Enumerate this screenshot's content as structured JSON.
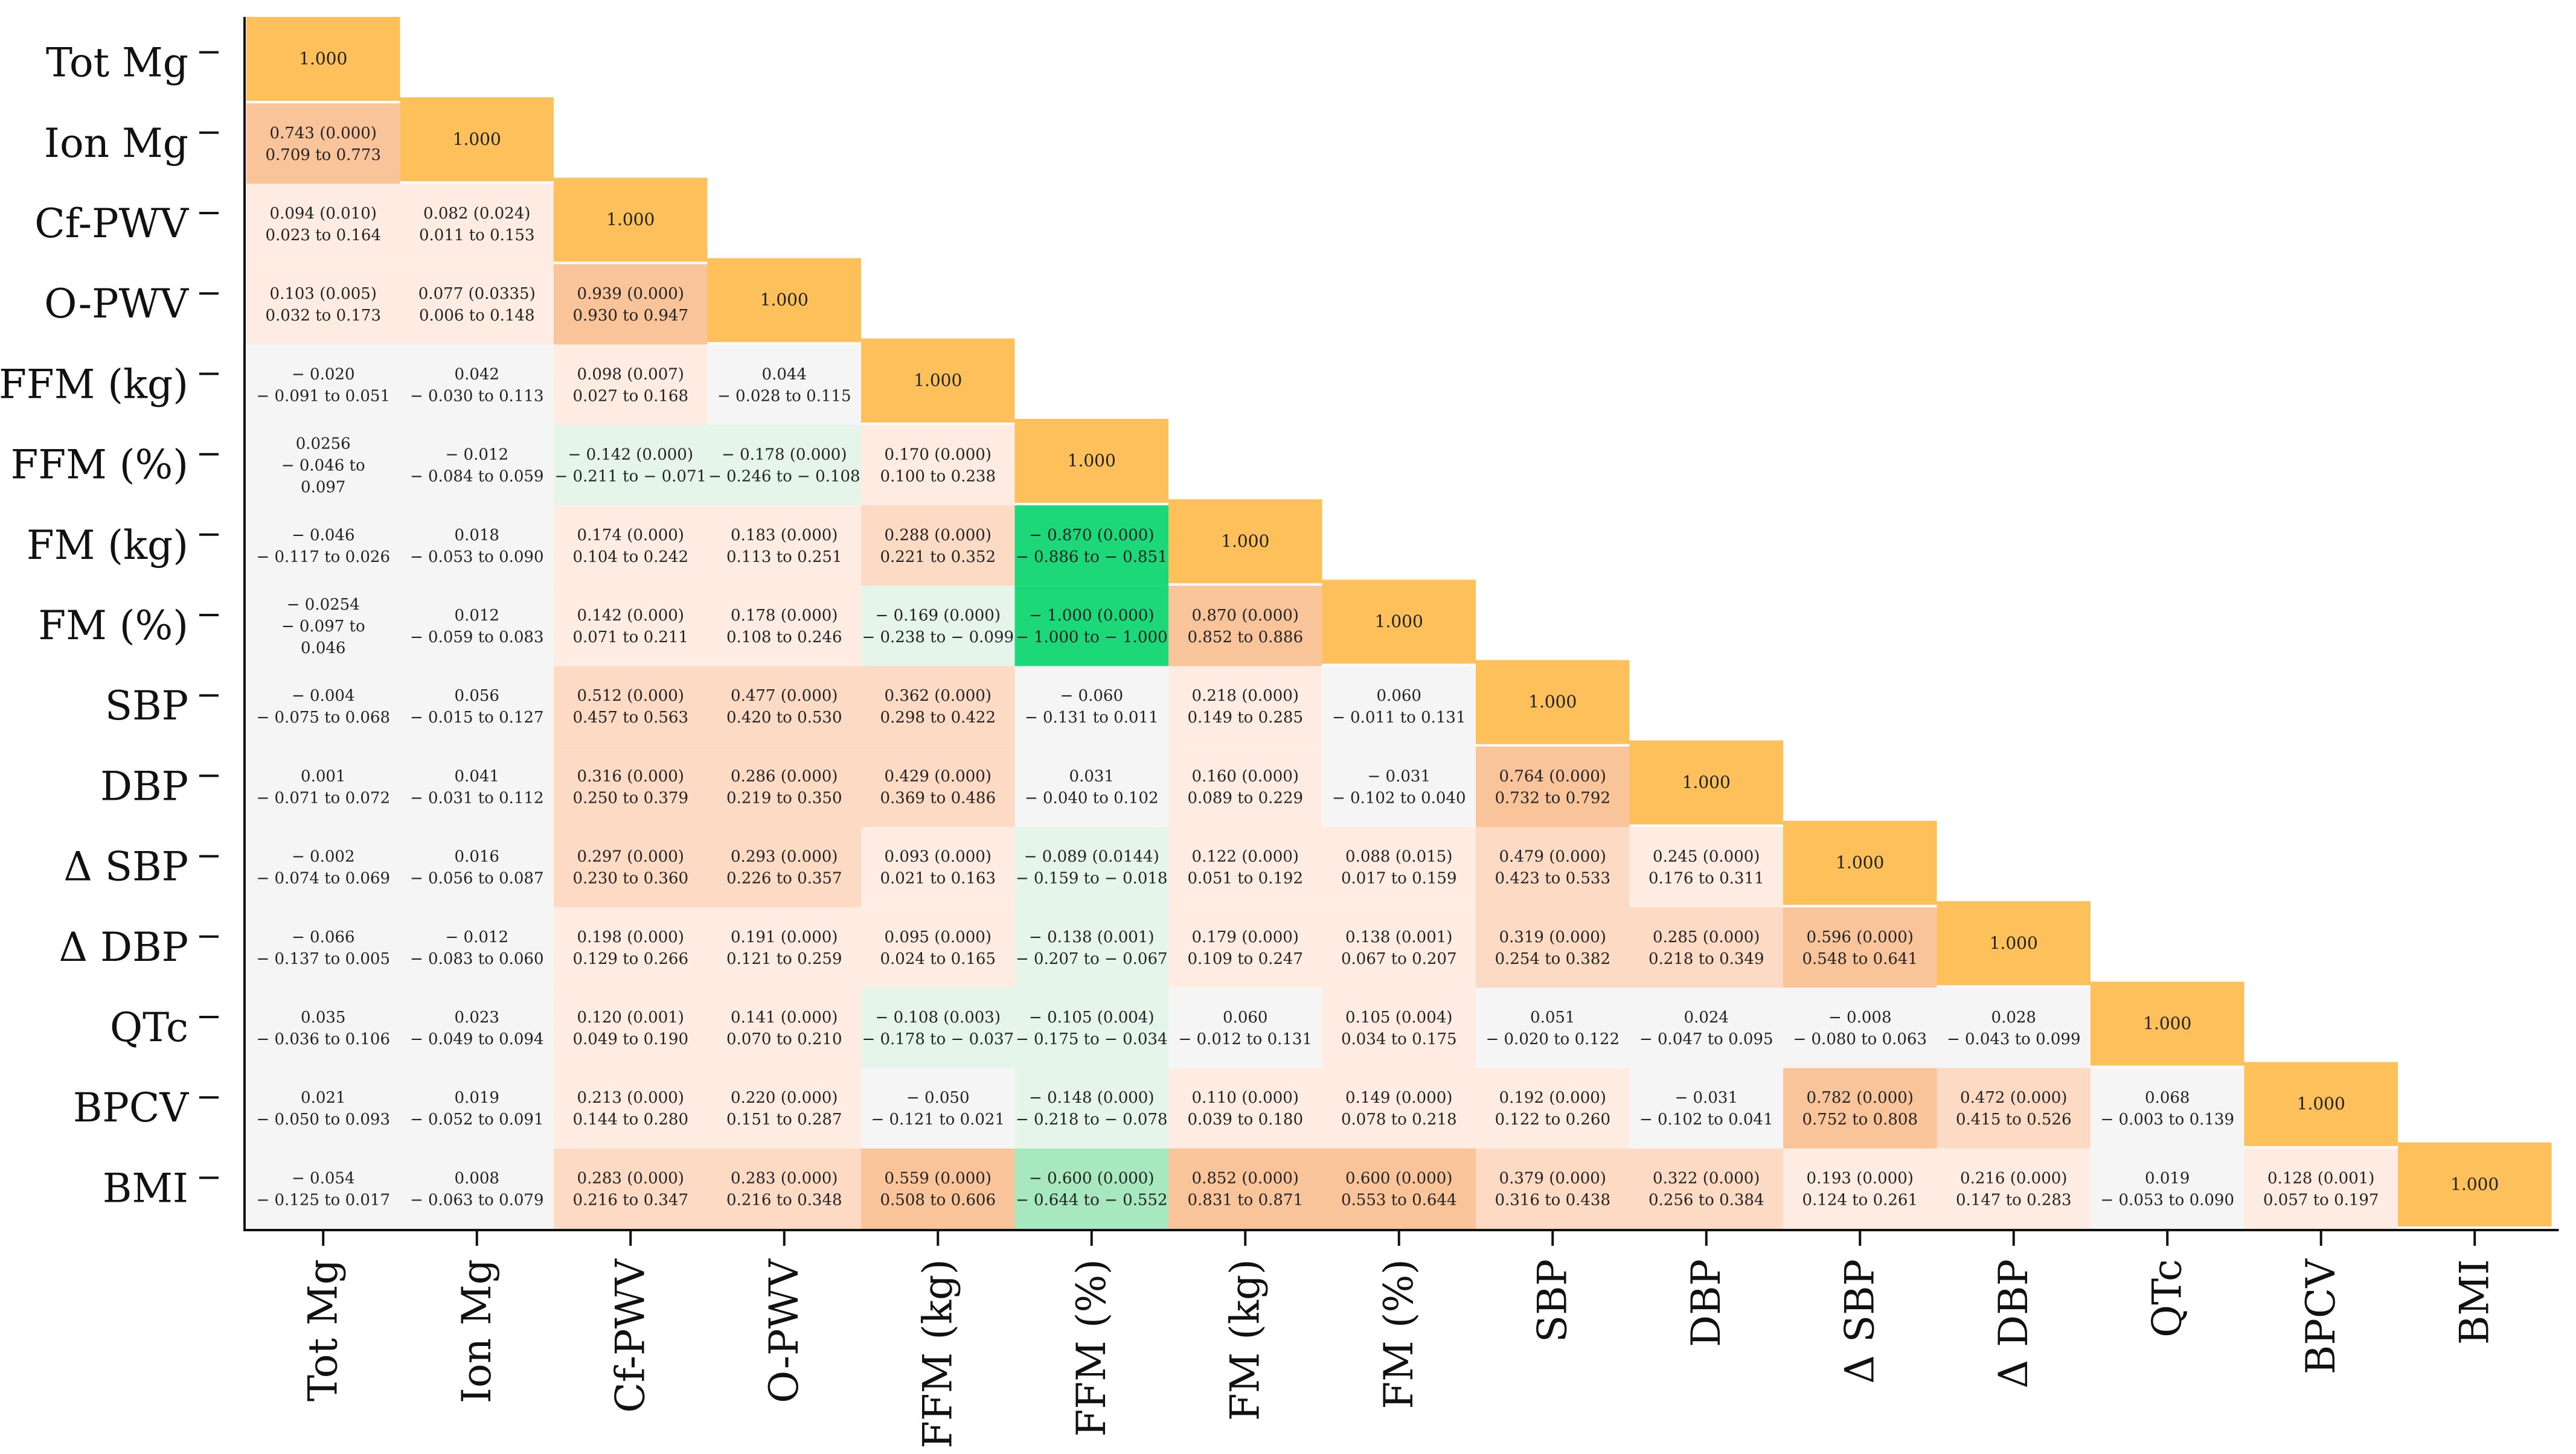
{
  "chart_data": {
    "type": "heatmap",
    "title": "",
    "variables": [
      "Tot Mg",
      "Ion Mg",
      "Cf-PWV",
      "O-PWV",
      "FFM (kg)",
      "FFM (%)",
      "FM (kg)",
      "FM (%)",
      "SBP",
      "DBP",
      "Δ SBP",
      "Δ DBP",
      "QTc",
      "BPCV",
      "BMI"
    ],
    "diagonal_label": "1.000",
    "colors": {
      "diagonal": "#FDC05A",
      "strong_positive": "#F9C49A",
      "moderate_positive": "#FCDAC4",
      "weak_positive": "#FEECE3",
      "neutral": "#F5F5F5",
      "weak_negative": "#E6F5EA",
      "moderate_negative": "#A7E8BE",
      "strong_negative": "#1DD879",
      "axis": "#111111"
    },
    "cells": [
      [
        [
          "0.743 (0.000)",
          "0.709 to 0.773"
        ]
      ],
      [
        [
          "0.094 (0.010)",
          "0.023 to 0.164"
        ],
        [
          "0.082 (0.024)",
          "0.011 to 0.153"
        ]
      ],
      [
        [
          "0.103 (0.005)",
          "0.032 to 0.173"
        ],
        [
          "0.077 (0.0335)",
          "0.006 to 0.148"
        ],
        [
          "0.939 (0.000)",
          "0.930 to 0.947"
        ]
      ],
      [
        [
          "− 0.020",
          "− 0.091 to 0.051"
        ],
        [
          "0.042",
          "− 0.030 to 0.113"
        ],
        [
          "0.098 (0.007)",
          "0.027 to 0.168"
        ],
        [
          "0.044",
          "− 0.028 to 0.115"
        ]
      ],
      [
        [
          "0.0256",
          "− 0.046 to",
          "0.097"
        ],
        [
          "− 0.012",
          "− 0.084 to 0.059"
        ],
        [
          "− 0.142 (0.000)",
          "− 0.211 to − 0.071"
        ],
        [
          "− 0.178 (0.000)",
          "− 0.246 to − 0.108"
        ],
        [
          "0.170 (0.000)",
          "0.100 to 0.238"
        ]
      ],
      [
        [
          "− 0.046",
          "− 0.117 to 0.026"
        ],
        [
          "0.018",
          "− 0.053 to 0.090"
        ],
        [
          "0.174 (0.000)",
          "0.104 to 0.242"
        ],
        [
          "0.183 (0.000)",
          "0.113 to 0.251"
        ],
        [
          "0.288 (0.000)",
          "0.221 to 0.352"
        ],
        [
          "− 0.870 (0.000)",
          "− 0.886 to − 0.851"
        ]
      ],
      [
        [
          "− 0.0254",
          "− 0.097 to",
          "0.046"
        ],
        [
          "0.012",
          "− 0.059 to 0.083"
        ],
        [
          "0.142 (0.000)",
          "0.071 to 0.211"
        ],
        [
          "0.178 (0.000)",
          "0.108 to 0.246"
        ],
        [
          "− 0.169 (0.000)",
          "− 0.238 to − 0.099"
        ],
        [
          "− 1.000 (0.000)",
          "− 1.000 to − 1.000"
        ],
        [
          "0.870 (0.000)",
          "0.852 to 0.886"
        ]
      ],
      [
        [
          "− 0.004",
          "− 0.075 to 0.068"
        ],
        [
          "0.056",
          "− 0.015 to 0.127"
        ],
        [
          "0.512 (0.000)",
          "0.457 to 0.563"
        ],
        [
          "0.477 (0.000)",
          "0.420 to 0.530"
        ],
        [
          "0.362 (0.000)",
          "0.298 to 0.422"
        ],
        [
          "− 0.060",
          "− 0.131 to 0.011"
        ],
        [
          "0.218 (0.000)",
          "0.149 to 0.285"
        ],
        [
          "0.060",
          "− 0.011 to 0.131"
        ]
      ],
      [
        [
          "0.001",
          "− 0.071 to 0.072"
        ],
        [
          "0.041",
          "− 0.031 to 0.112"
        ],
        [
          "0.316 (0.000)",
          "0.250 to 0.379"
        ],
        [
          "0.286 (0.000)",
          "0.219 to 0.350"
        ],
        [
          "0.429 (0.000)",
          "0.369 to 0.486"
        ],
        [
          "0.031",
          "− 0.040 to 0.102"
        ],
        [
          "0.160 (0.000)",
          "0.089 to 0.229"
        ],
        [
          "− 0.031",
          "− 0.102 to 0.040"
        ],
        [
          "0.764 (0.000)",
          "0.732 to 0.792"
        ]
      ],
      [
        [
          "− 0.002",
          "− 0.074 to 0.069"
        ],
        [
          "0.016",
          "− 0.056 to 0.087"
        ],
        [
          "0.297 (0.000)",
          "0.230 to 0.360"
        ],
        [
          "0.293 (0.000)",
          "0.226 to 0.357"
        ],
        [
          "0.093 (0.000)",
          "0.021 to 0.163"
        ],
        [
          "− 0.089 (0.0144)",
          "− 0.159 to − 0.018"
        ],
        [
          "0.122 (0.000)",
          "0.051 to 0.192"
        ],
        [
          "0.088 (0.015)",
          "0.017 to 0.159"
        ],
        [
          "0.479 (0.000)",
          "0.423 to 0.533"
        ],
        [
          "0.245 (0.000)",
          "0.176 to 0.311"
        ]
      ],
      [
        [
          "− 0.066",
          "− 0.137 to 0.005"
        ],
        [
          "− 0.012",
          "− 0.083 to 0.060"
        ],
        [
          "0.198 (0.000)",
          "0.129 to 0.266"
        ],
        [
          "0.191 (0.000)",
          "0.121 to 0.259"
        ],
        [
          "0.095 (0.000)",
          "0.024 to 0.165"
        ],
        [
          "− 0.138 (0.001)",
          "− 0.207 to − 0.067"
        ],
        [
          "0.179 (0.000)",
          "0.109 to 0.247"
        ],
        [
          "0.138 (0.001)",
          "0.067 to 0.207"
        ],
        [
          "0.319 (0.000)",
          "0.254 to 0.382"
        ],
        [
          "0.285 (0.000)",
          "0.218 to 0.349"
        ],
        [
          "0.596 (0.000)",
          "0.548 to 0.641"
        ]
      ],
      [
        [
          "0.035",
          "− 0.036 to 0.106"
        ],
        [
          "0.023",
          "− 0.049 to 0.094"
        ],
        [
          "0.120 (0.001)",
          "0.049 to 0.190"
        ],
        [
          "0.141 (0.000)",
          "0.070 to 0.210"
        ],
        [
          "− 0.108 (0.003)",
          "− 0.178 to − 0.037"
        ],
        [
          "− 0.105 (0.004)",
          "− 0.175 to − 0.034"
        ],
        [
          "0.060",
          "− 0.012 to 0.131"
        ],
        [
          "0.105 (0.004)",
          "0.034 to 0.175"
        ],
        [
          "0.051",
          "− 0.020 to 0.122"
        ],
        [
          "0.024",
          "− 0.047 to 0.095"
        ],
        [
          "− 0.008",
          "− 0.080 to 0.063"
        ],
        [
          "0.028",
          "− 0.043 to 0.099"
        ]
      ],
      [
        [
          "0.021",
          "− 0.050 to 0.093"
        ],
        [
          "0.019",
          "− 0.052 to 0.091"
        ],
        [
          "0.213 (0.000)",
          "0.144 to 0.280"
        ],
        [
          "0.220 (0.000)",
          "0.151 to 0.287"
        ],
        [
          "− 0.050",
          "− 0.121 to 0.021"
        ],
        [
          "− 0.148 (0.000)",
          "− 0.218 to − 0.078"
        ],
        [
          "0.110 (0.000)",
          "0.039 to 0.180"
        ],
        [
          "0.149 (0.000)",
          "0.078 to 0.218"
        ],
        [
          "0.192 (0.000)",
          "0.122 to 0.260"
        ],
        [
          "− 0.031",
          "− 0.102 to 0.041"
        ],
        [
          "0.782 (0.000)",
          "0.752 to 0.808"
        ],
        [
          "0.472 (0.000)",
          "0.415 to 0.526"
        ],
        [
          "0.068",
          "− 0.003 to 0.139"
        ]
      ],
      [
        [
          "− 0.054",
          "− 0.125 to 0.017"
        ],
        [
          "0.008",
          "− 0.063 to 0.079"
        ],
        [
          "0.283 (0.000)",
          "0.216 to 0.347"
        ],
        [
          "0.283 (0.000)",
          "0.216 to 0.348"
        ],
        [
          "0.559 (0.000)",
          "0.508 to 0.606"
        ],
        [
          "− 0.600 (0.000)",
          "− 0.644 to − 0.552"
        ],
        [
          "0.852 (0.000)",
          "0.831 to 0.871"
        ],
        [
          "0.600 (0.000)",
          "0.553 to 0.644"
        ],
        [
          "0.379 (0.000)",
          "0.316 to 0.438"
        ],
        [
          "0.322 (0.000)",
          "0.256 to 0.384"
        ],
        [
          "0.193 (0.000)",
          "0.124 to 0.261"
        ],
        [
          "0.216 (0.000)",
          "0.147 to 0.283"
        ],
        [
          "0.019",
          "− 0.053 to 0.090"
        ],
        [
          "0.128 (0.001)",
          "0.057 to 0.197"
        ]
      ]
    ]
  }
}
